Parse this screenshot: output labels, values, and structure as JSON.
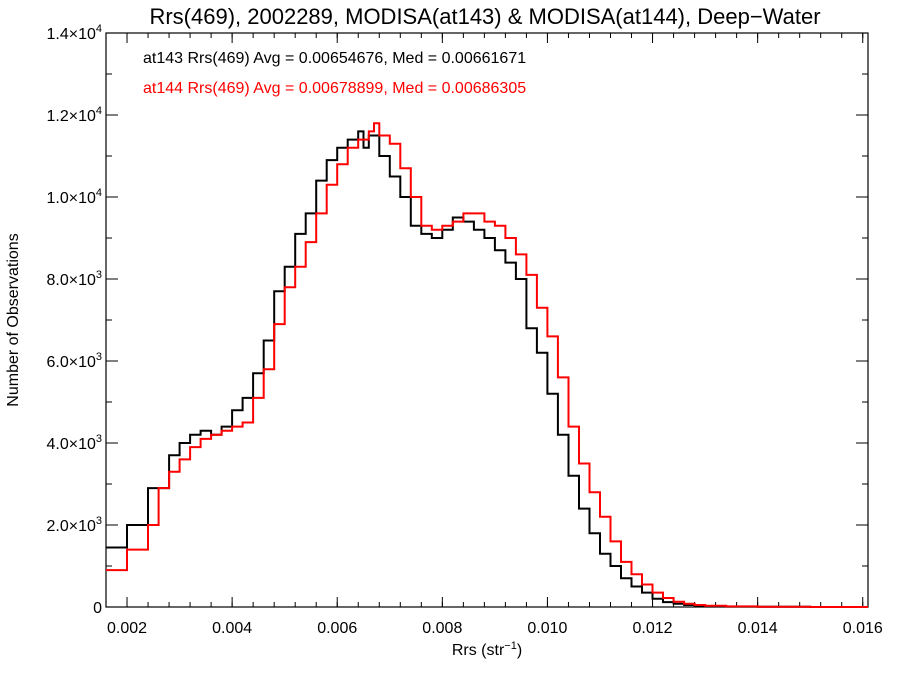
{
  "chart_data": {
    "type": "line",
    "title": "Rrs(469), 2002289, MODISA(at143) & MODISA(at144), Deep−Water",
    "xlabel": "Rrs (str",
    "xlabel_sup": "−1",
    "xlabel_suffix": ")",
    "ylabel": "Number of Observations",
    "xlim": [
      0.0016,
      0.0161
    ],
    "ylim": [
      0,
      14000
    ],
    "x_ticks": [
      "0.002",
      "0.004",
      "0.006",
      "0.008",
      "0.010",
      "0.012",
      "0.014",
      "0.016"
    ],
    "x_tick_values": [
      0.002,
      0.004,
      0.006,
      0.008,
      0.01,
      0.012,
      0.014,
      0.016
    ],
    "y_ticks": [
      {
        "value": 0,
        "mantissa": "0",
        "exp": ""
      },
      {
        "value": 2000,
        "mantissa": "2.0×10",
        "exp": "3"
      },
      {
        "value": 4000,
        "mantissa": "4.0×10",
        "exp": "3"
      },
      {
        "value": 6000,
        "mantissa": "6.0×10",
        "exp": "3"
      },
      {
        "value": 8000,
        "mantissa": "8.0×10",
        "exp": "3"
      },
      {
        "value": 10000,
        "mantissa": "1.0×10",
        "exp": "4"
      },
      {
        "value": 12000,
        "mantissa": "1.2×10",
        "exp": "4"
      },
      {
        "value": 14000,
        "mantissa": "1.4×10",
        "exp": "4"
      }
    ],
    "legend": [
      {
        "text": "at143 Rrs(469) Avg = 0.00654676, Med = 0.00661671",
        "color": "#000000"
      },
      {
        "text": "at144 Rrs(469) Avg = 0.00678899, Med = 0.00686305",
        "color": "#ff0000"
      }
    ],
    "legend_position": "top-left",
    "grid": false,
    "series": [
      {
        "color": "#000000",
        "style": "step",
        "x": [
          0.0016,
          0.002,
          0.0024,
          0.0028,
          0.003,
          0.0032,
          0.0034,
          0.0036,
          0.0038,
          0.004,
          0.0042,
          0.0044,
          0.0046,
          0.0048,
          0.005,
          0.0052,
          0.0054,
          0.0056,
          0.0058,
          0.006,
          0.0062,
          0.0064,
          0.0065,
          0.0066,
          0.0068,
          0.007,
          0.0072,
          0.0074,
          0.0076,
          0.0078,
          0.008,
          0.0082,
          0.0084,
          0.0086,
          0.0088,
          0.009,
          0.0092,
          0.0094,
          0.0096,
          0.0098,
          0.01,
          0.0102,
          0.0104,
          0.0106,
          0.0108,
          0.011,
          0.0112,
          0.0114,
          0.0116,
          0.0118,
          0.012,
          0.0122,
          0.0124,
          0.0126,
          0.0128,
          0.013,
          0.0134,
          0.014,
          0.015,
          0.0161
        ],
        "y": [
          1450,
          2000,
          2900,
          3700,
          4000,
          4200,
          4300,
          4200,
          4400,
          4800,
          5100,
          5700,
          6500,
          7700,
          8300,
          9100,
          9600,
          10400,
          10900,
          11200,
          11400,
          11600,
          11200,
          11500,
          11000,
          10500,
          10000,
          9300,
          9100,
          9000,
          9200,
          9500,
          9400,
          9200,
          9000,
          8700,
          8400,
          8000,
          6800,
          6200,
          5200,
          4200,
          3200,
          2400,
          1800,
          1300,
          1000,
          700,
          500,
          350,
          200,
          120,
          80,
          50,
          30,
          20,
          10,
          5,
          0,
          0
        ]
      },
      {
        "color": "#ff0000",
        "style": "step",
        "x": [
          0.0016,
          0.002,
          0.0024,
          0.0026,
          0.0028,
          0.003,
          0.0032,
          0.0034,
          0.0036,
          0.0038,
          0.004,
          0.0042,
          0.0044,
          0.0046,
          0.0048,
          0.005,
          0.0052,
          0.0054,
          0.0056,
          0.0058,
          0.006,
          0.0062,
          0.0064,
          0.0066,
          0.0067,
          0.0068,
          0.007,
          0.0072,
          0.0074,
          0.0076,
          0.0078,
          0.008,
          0.0082,
          0.0084,
          0.0086,
          0.0088,
          0.009,
          0.0092,
          0.0094,
          0.0096,
          0.0098,
          0.01,
          0.0102,
          0.0104,
          0.0106,
          0.0108,
          0.011,
          0.0112,
          0.0114,
          0.0116,
          0.0118,
          0.012,
          0.0122,
          0.0124,
          0.0126,
          0.0128,
          0.013,
          0.0134,
          0.014,
          0.015,
          0.0161
        ],
        "y": [
          900,
          1400,
          2000,
          2900,
          3300,
          3600,
          3900,
          4100,
          4200,
          4300,
          4400,
          4500,
          5100,
          5800,
          6900,
          7800,
          8300,
          8900,
          9600,
          10300,
          10800,
          11200,
          11400,
          11600,
          11800,
          11500,
          11300,
          10700,
          10000,
          9300,
          9200,
          9300,
          9400,
          9600,
          9600,
          9400,
          9300,
          9000,
          8600,
          8100,
          7300,
          6600,
          5600,
          4400,
          3500,
          2800,
          2200,
          1600,
          1100,
          800,
          550,
          350,
          220,
          130,
          80,
          50,
          30,
          15,
          5,
          0,
          0
        ]
      }
    ]
  }
}
